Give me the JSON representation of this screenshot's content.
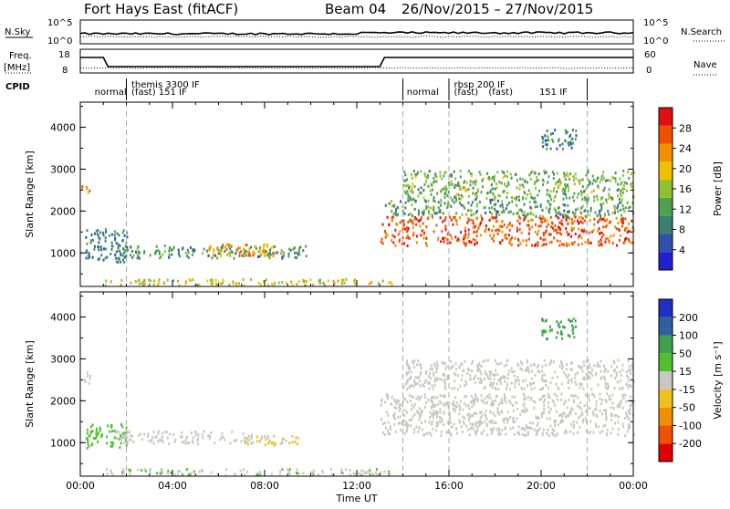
{
  "header": {
    "site": "Fort Hays East (fitACF)",
    "beam": "Beam 04",
    "dates": "26/Nov/2015 – 27/Nov/2015"
  },
  "panel_labels": {
    "nsky": "N.Sky",
    "nsearch": "N.Search",
    "freq": "Freq.",
    "freq_unit": "[MHz]",
    "nave": "Nave",
    "cpid": "CPID"
  },
  "left_axis_ticks": {
    "nsky_top": "10^5",
    "nsky_bottom": "10^0",
    "freq_top": "18",
    "freq_bottom": "8"
  },
  "right_axis_ticks": {
    "nsearch_top": "10^5",
    "nsearch_bottom": "10^0",
    "nave_top": "60",
    "nave_bottom": "0"
  },
  "cpid_labels": [
    {
      "text": "normal",
      "x": 0.5
    },
    {
      "text": "themis 3300 IF",
      "x": 2.1
    },
    {
      "text": "(fast)  151  IF",
      "x": 2.1
    },
    {
      "text": "normal",
      "x": 14.05
    },
    {
      "text": "rbsp 200 IF",
      "x": 16.1
    },
    {
      "text": "(fast)",
      "x": 16.1
    },
    {
      "text": "(fast)",
      "x": 17.6
    },
    {
      "text": "151  IF",
      "x": 19.8
    }
  ],
  "colors": {
    "power": [
      "#2020d0",
      "#3050b0",
      "#3a8070",
      "#50a050",
      "#90c030",
      "#f0c000",
      "#f09000",
      "#f05000",
      "#e01010"
    ],
    "velocity": [
      "#e00000",
      "#f05000",
      "#f09000",
      "#f0c020",
      "#c8c8c0",
      "#50c030",
      "#40a050",
      "#3060a0",
      "#2030c0"
    ]
  },
  "chart_data": [
    {
      "type": "heatmap",
      "title": "Power",
      "ylabel": "Slant Range [km]",
      "xlabel": "",
      "x_unit": "hours UT",
      "xlim": [
        0,
        24
      ],
      "ylim": [
        200,
        4600
      ],
      "yticks": [
        "1000",
        "2000",
        "3000",
        "4000"
      ],
      "colorbar_label": "Power [dB]",
      "colorbar_ticks": [
        "4",
        "8",
        "12",
        "16",
        "20",
        "24",
        "28"
      ],
      "regions": [
        {
          "t0": 0.2,
          "t1": 2.0,
          "r0": 800,
          "r1": 1600,
          "value": 10
        },
        {
          "t0": 0.0,
          "t1": 0.4,
          "r0": 2450,
          "r1": 2700,
          "value": 22
        },
        {
          "t0": 1.5,
          "t1": 10.0,
          "r0": 900,
          "r1": 1200,
          "value": 12
        },
        {
          "t0": 5.5,
          "t1": 8.5,
          "r0": 950,
          "r1": 1250,
          "value": 22
        },
        {
          "t0": 1.0,
          "t1": 13.5,
          "r0": 250,
          "r1": 400,
          "value": 18
        },
        {
          "t0": 13.0,
          "t1": 24.0,
          "r0": 1200,
          "r1": 1900,
          "value": 25
        },
        {
          "t0": 13.2,
          "t1": 24.0,
          "r0": 1900,
          "r1": 2300,
          "value": 12
        },
        {
          "t0": 14.0,
          "t1": 24.0,
          "r0": 2300,
          "r1": 3000,
          "value": 14
        },
        {
          "t0": 20.0,
          "t1": 21.5,
          "r0": 3500,
          "r1": 4000,
          "value": 10
        }
      ]
    },
    {
      "type": "heatmap",
      "title": "Velocity",
      "ylabel": "Slant Range [km]",
      "xlabel": "Time UT",
      "xlim": [
        0,
        24
      ],
      "ylim": [
        200,
        4600
      ],
      "xticks": [
        "00:00",
        "04:00",
        "08:00",
        "12:00",
        "16:00",
        "20:00",
        "00:00"
      ],
      "yticks": [
        "1000",
        "2000",
        "3000",
        "4000"
      ],
      "colorbar_label": "Velocity [m s⁻¹]",
      "colorbar_ticks": [
        "-200",
        "-100",
        "-50",
        "-15",
        "15",
        "50",
        "100",
        "200"
      ],
      "regions": [
        {
          "t0": 0.2,
          "t1": 2.0,
          "r0": 900,
          "r1": 1500,
          "value": 40
        },
        {
          "t0": 0.0,
          "t1": 0.4,
          "r0": 2400,
          "r1": 2700,
          "value": 0
        },
        {
          "t0": 1.5,
          "t1": 7.5,
          "r0": 1000,
          "r1": 1300,
          "value": 0
        },
        {
          "t0": 7.0,
          "t1": 9.5,
          "r0": 950,
          "r1": 1200,
          "value": -30
        },
        {
          "t0": 1.0,
          "t1": 13.5,
          "r0": 250,
          "r1": 400,
          "value": 20
        },
        {
          "t0": 13.0,
          "t1": 24.0,
          "r0": 1200,
          "r1": 2200,
          "value": 0
        },
        {
          "t0": 14.0,
          "t1": 24.0,
          "r0": 2300,
          "r1": 3000,
          "value": 0
        },
        {
          "t0": 20.0,
          "t1": 21.5,
          "r0": 3500,
          "r1": 4000,
          "value": 80
        }
      ]
    }
  ]
}
